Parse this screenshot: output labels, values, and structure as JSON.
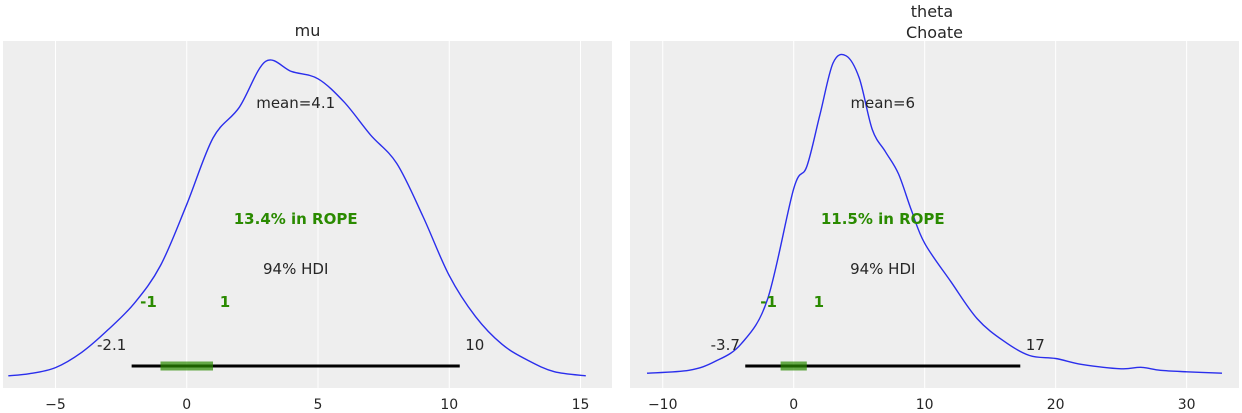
{
  "chart_data": [
    {
      "type": "line",
      "title": "mu",
      "xlim": [
        -7.0,
        16.2
      ],
      "xticks": [
        -5,
        0,
        5,
        10,
        15
      ],
      "xtick_labels": [
        "−5",
        "0",
        "5",
        "10",
        "15"
      ],
      "grid": true,
      "x": [
        -6.8,
        -6.0,
        -5.0,
        -4.0,
        -3.0,
        -2.0,
        -1.0,
        0.0,
        1.0,
        2.0,
        3.0,
        4.0,
        5.0,
        6.0,
        7.0,
        8.0,
        9.0,
        10.0,
        11.0,
        12.0,
        13.0,
        14.0,
        15.2
      ],
      "y": [
        0.002,
        0.004,
        0.01,
        0.025,
        0.047,
        0.073,
        0.11,
        0.17,
        0.235,
        0.265,
        0.31,
        0.3,
        0.293,
        0.27,
        0.238,
        0.21,
        0.158,
        0.1,
        0.06,
        0.033,
        0.017,
        0.006,
        0.002
      ],
      "ylim": [
        -0.01,
        0.33
      ],
      "mean_label": "mean=4.1",
      "rope_label": "13.4% in ROPE",
      "rope": [
        -1,
        1
      ],
      "rope_labels": [
        "-1",
        "1"
      ],
      "hdi_label": "94% HDI",
      "hdi": [
        -2.1,
        10.4
      ],
      "hdi_labels": [
        "-2.1",
        "10"
      ],
      "color": "#2a2eec",
      "rope_color": "#2a8a00"
    },
    {
      "type": "line",
      "title": "theta\nChoate",
      "xlim": [
        -12.5,
        34.0
      ],
      "xticks": [
        -10,
        0,
        10,
        20,
        30
      ],
      "xtick_labels": [
        "−10",
        "0",
        "10",
        "20",
        "30"
      ],
      "grid": true,
      "x": [
        -11.2,
        -8.0,
        -6.0,
        -4.0,
        -2.0,
        0.0,
        1.0,
        2.0,
        3.0,
        4.0,
        5.0,
        6.0,
        7.0,
        8.0,
        9.0,
        10.0,
        12.0,
        14.0,
        16.0,
        18.0,
        20.0,
        22.0,
        25.0,
        26.5,
        28.0,
        30.0,
        32.7
      ],
      "y": [
        0.0,
        0.002,
        0.008,
        0.02,
        0.05,
        0.125,
        0.14,
        0.175,
        0.21,
        0.215,
        0.2,
        0.165,
        0.15,
        0.135,
        0.11,
        0.088,
        0.062,
        0.037,
        0.022,
        0.012,
        0.01,
        0.006,
        0.003,
        0.004,
        0.002,
        0.001,
        0.0
      ],
      "ylim": [
        -0.01,
        0.225
      ],
      "mean_label": "mean=6",
      "rope_label": "11.5% in ROPE",
      "rope": [
        -1,
        1
      ],
      "rope_labels": [
        "-1",
        "1"
      ],
      "hdi_label": "94% HDI",
      "hdi": [
        -3.7,
        17.3
      ],
      "hdi_labels": [
        "-3.7",
        "17"
      ],
      "color": "#2a2eec",
      "rope_color": "#2a8a00"
    }
  ]
}
